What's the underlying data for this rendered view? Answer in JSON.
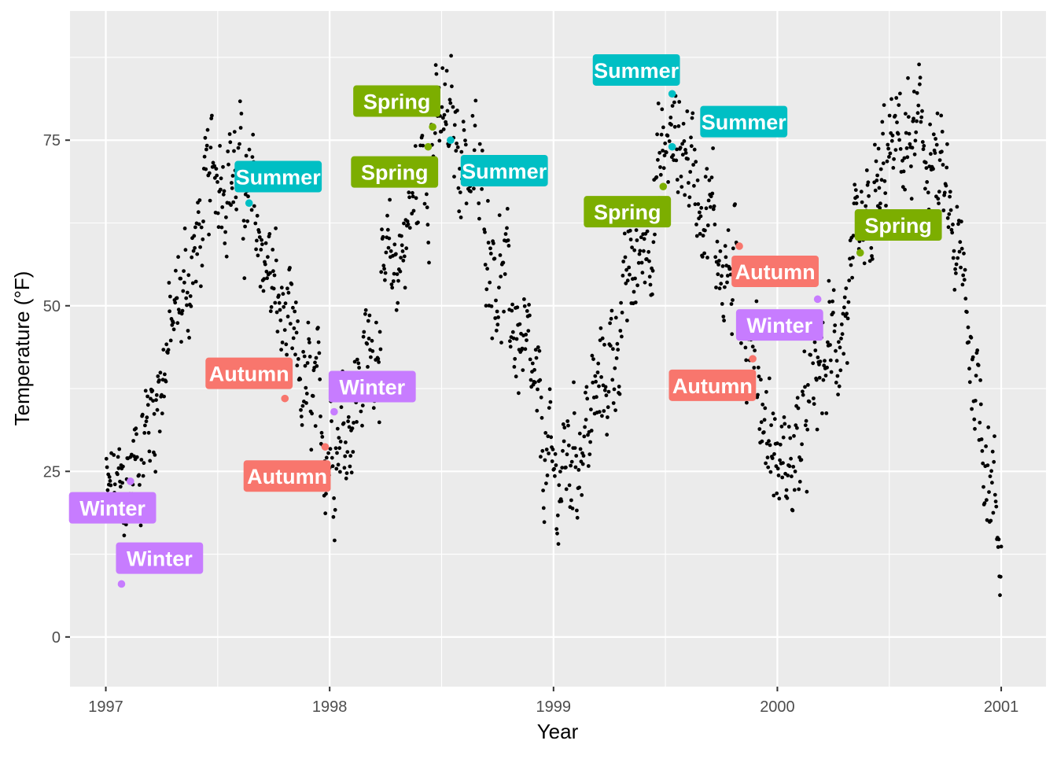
{
  "chart_data": {
    "type": "scatter",
    "title": "",
    "xlabel": "Year",
    "ylabel": "Temperature (°F)",
    "xlim": [
      1996.84,
      2001.2
    ],
    "ylim": [
      -7.5,
      94.5
    ],
    "x_ticks": [
      {
        "value": 1997,
        "label": "1997"
      },
      {
        "value": 1998,
        "label": "1998"
      },
      {
        "value": 1999,
        "label": "1999"
      },
      {
        "value": 2000,
        "label": "2000"
      },
      {
        "value": 2001,
        "label": "2001"
      }
    ],
    "y_ticks": [
      {
        "value": 0,
        "label": "0"
      },
      {
        "value": 25,
        "label": "25"
      },
      {
        "value": 50,
        "label": "50"
      },
      {
        "value": 75,
        "label": "75"
      }
    ],
    "grid": true,
    "background": "#EBEBEB",
    "point_color": "#000000",
    "season_colors": {
      "Winter": "#C77CFF",
      "Spring": "#7CAE00",
      "Summer": "#00BFC4",
      "Autumn": "#F8766D"
    },
    "temperature_profile": [
      [
        1997.0,
        20
      ],
      [
        1997.08,
        21
      ],
      [
        1997.17,
        30
      ],
      [
        1997.25,
        40
      ],
      [
        1997.33,
        50
      ],
      [
        1997.42,
        60
      ],
      [
        1997.5,
        73
      ],
      [
        1997.58,
        70
      ],
      [
        1997.67,
        63
      ],
      [
        1997.75,
        52
      ],
      [
        1997.83,
        42
      ],
      [
        1997.92,
        34
      ],
      [
        1998.0,
        30
      ],
      [
        1998.08,
        33
      ],
      [
        1998.17,
        42
      ],
      [
        1998.25,
        52
      ],
      [
        1998.33,
        60
      ],
      [
        1998.42,
        72
      ],
      [
        1998.5,
        77
      ],
      [
        1998.58,
        75
      ],
      [
        1998.67,
        67
      ],
      [
        1998.75,
        56
      ],
      [
        1998.83,
        47
      ],
      [
        1998.92,
        34
      ],
      [
        1999.0,
        22
      ],
      [
        1999.08,
        28
      ],
      [
        1999.17,
        33
      ],
      [
        1999.25,
        41
      ],
      [
        1999.33,
        52
      ],
      [
        1999.42,
        62
      ],
      [
        1999.5,
        73
      ],
      [
        1999.58,
        75
      ],
      [
        1999.67,
        67
      ],
      [
        1999.75,
        58
      ],
      [
        1999.83,
        50
      ],
      [
        1999.92,
        38
      ],
      [
        2000.0,
        25
      ],
      [
        2000.08,
        27
      ],
      [
        2000.17,
        38
      ],
      [
        2000.25,
        44
      ],
      [
        2000.33,
        51
      ],
      [
        2000.42,
        62
      ],
      [
        2000.5,
        72
      ],
      [
        2000.58,
        74
      ],
      [
        2000.67,
        74
      ],
      [
        2000.75,
        65
      ],
      [
        2000.83,
        52
      ],
      [
        2000.92,
        32
      ],
      [
        2001.0,
        12
      ]
    ],
    "highlighted_points": [
      {
        "season": "Winter",
        "x": 1997.07,
        "y": 8
      },
      {
        "season": "Winter",
        "x": 1997.11,
        "y": 23.5
      },
      {
        "season": "Summer",
        "x": 1997.64,
        "y": 65.5
      },
      {
        "season": "Autumn",
        "x": 1997.8,
        "y": 36
      },
      {
        "season": "Autumn",
        "x": 1997.98,
        "y": 28.7
      },
      {
        "season": "Winter",
        "x": 1998.02,
        "y": 34
      },
      {
        "season": "Spring",
        "x": 1998.44,
        "y": 74
      },
      {
        "season": "Spring",
        "x": 1998.46,
        "y": 77
      },
      {
        "season": "Summer",
        "x": 1998.54,
        "y": 75
      },
      {
        "season": "Spring",
        "x": 1999.49,
        "y": 68
      },
      {
        "season": "Summer",
        "x": 1999.53,
        "y": 74
      },
      {
        "season": "Summer",
        "x": 1999.53,
        "y": 82
      },
      {
        "season": "Autumn",
        "x": 1999.83,
        "y": 59
      },
      {
        "season": "Autumn",
        "x": 1999.89,
        "y": 42
      },
      {
        "season": "Winter",
        "x": 2000.18,
        "y": 51
      },
      {
        "season": "Spring",
        "x": 2000.37,
        "y": 58
      }
    ],
    "labels": [
      {
        "text": "Winter",
        "season": "Winter",
        "x": 1997.03,
        "y": 19.5
      },
      {
        "text": "Winter",
        "season": "Winter",
        "x": 1997.24,
        "y": 11.9
      },
      {
        "text": "Summer",
        "season": "Summer",
        "x": 1997.77,
        "y": 69.5
      },
      {
        "text": "Autumn",
        "season": "Autumn",
        "x": 1997.64,
        "y": 39.8
      },
      {
        "text": "Autumn",
        "season": "Autumn",
        "x": 1997.81,
        "y": 24.3
      },
      {
        "text": "Winter",
        "season": "Winter",
        "x": 1998.19,
        "y": 37.8
      },
      {
        "text": "Spring",
        "season": "Spring",
        "x": 1998.29,
        "y": 70.2
      },
      {
        "text": "Spring",
        "season": "Spring",
        "x": 1998.3,
        "y": 80.9
      },
      {
        "text": "Summer",
        "season": "Summer",
        "x": 1998.78,
        "y": 70.4
      },
      {
        "text": "Spring",
        "season": "Spring",
        "x": 1999.33,
        "y": 64.2
      },
      {
        "text": "Summer",
        "season": "Summer",
        "x": 1999.85,
        "y": 77.8
      },
      {
        "text": "Summer",
        "season": "Summer",
        "x": 1999.37,
        "y": 85.6
      },
      {
        "text": "Autumn",
        "season": "Autumn",
        "x": 1999.99,
        "y": 55.2
      },
      {
        "text": "Autumn",
        "season": "Autumn",
        "x": 1999.71,
        "y": 38.0
      },
      {
        "text": "Winter",
        "season": "Winter",
        "x": 2000.01,
        "y": 47.1
      },
      {
        "text": "Spring",
        "season": "Spring",
        "x": 2000.54,
        "y": 62.2
      }
    ]
  }
}
